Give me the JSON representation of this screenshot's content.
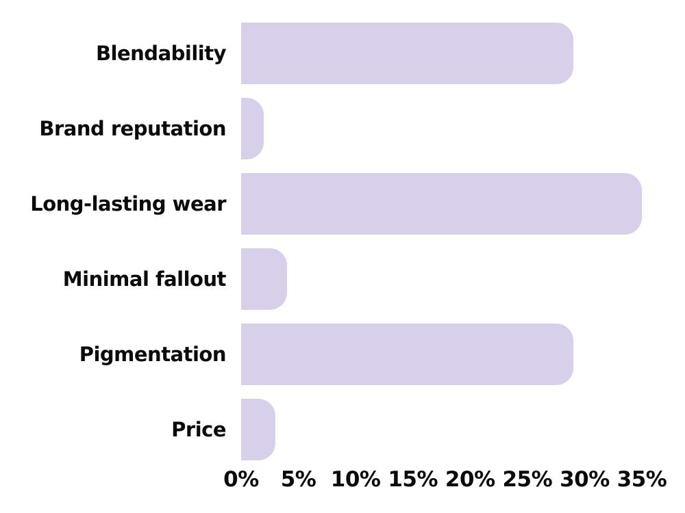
{
  "chart_data": {
    "type": "bar",
    "orientation": "horizontal",
    "title": "",
    "categories": [
      "Blendability",
      "Brand reputation",
      "Long-lasting wear",
      "Minimal fallout",
      "Pigmentation",
      "Price"
    ],
    "values": [
      29,
      2,
      35,
      4,
      29,
      3
    ],
    "value_unit": "%",
    "xlim": [
      0,
      35
    ],
    "x_tick_values": [
      0,
      5,
      10,
      15,
      20,
      25,
      30,
      35
    ],
    "x_tick_labels": [
      "0%",
      "5%",
      "10%",
      "15%",
      "20%",
      "25%",
      "30%",
      "35%"
    ],
    "grid": false,
    "legend": "none",
    "data_labels": "none",
    "bar_color": "#d8d0ea",
    "text_color": "#0b0b0b",
    "background_color": "#ffffff"
  }
}
